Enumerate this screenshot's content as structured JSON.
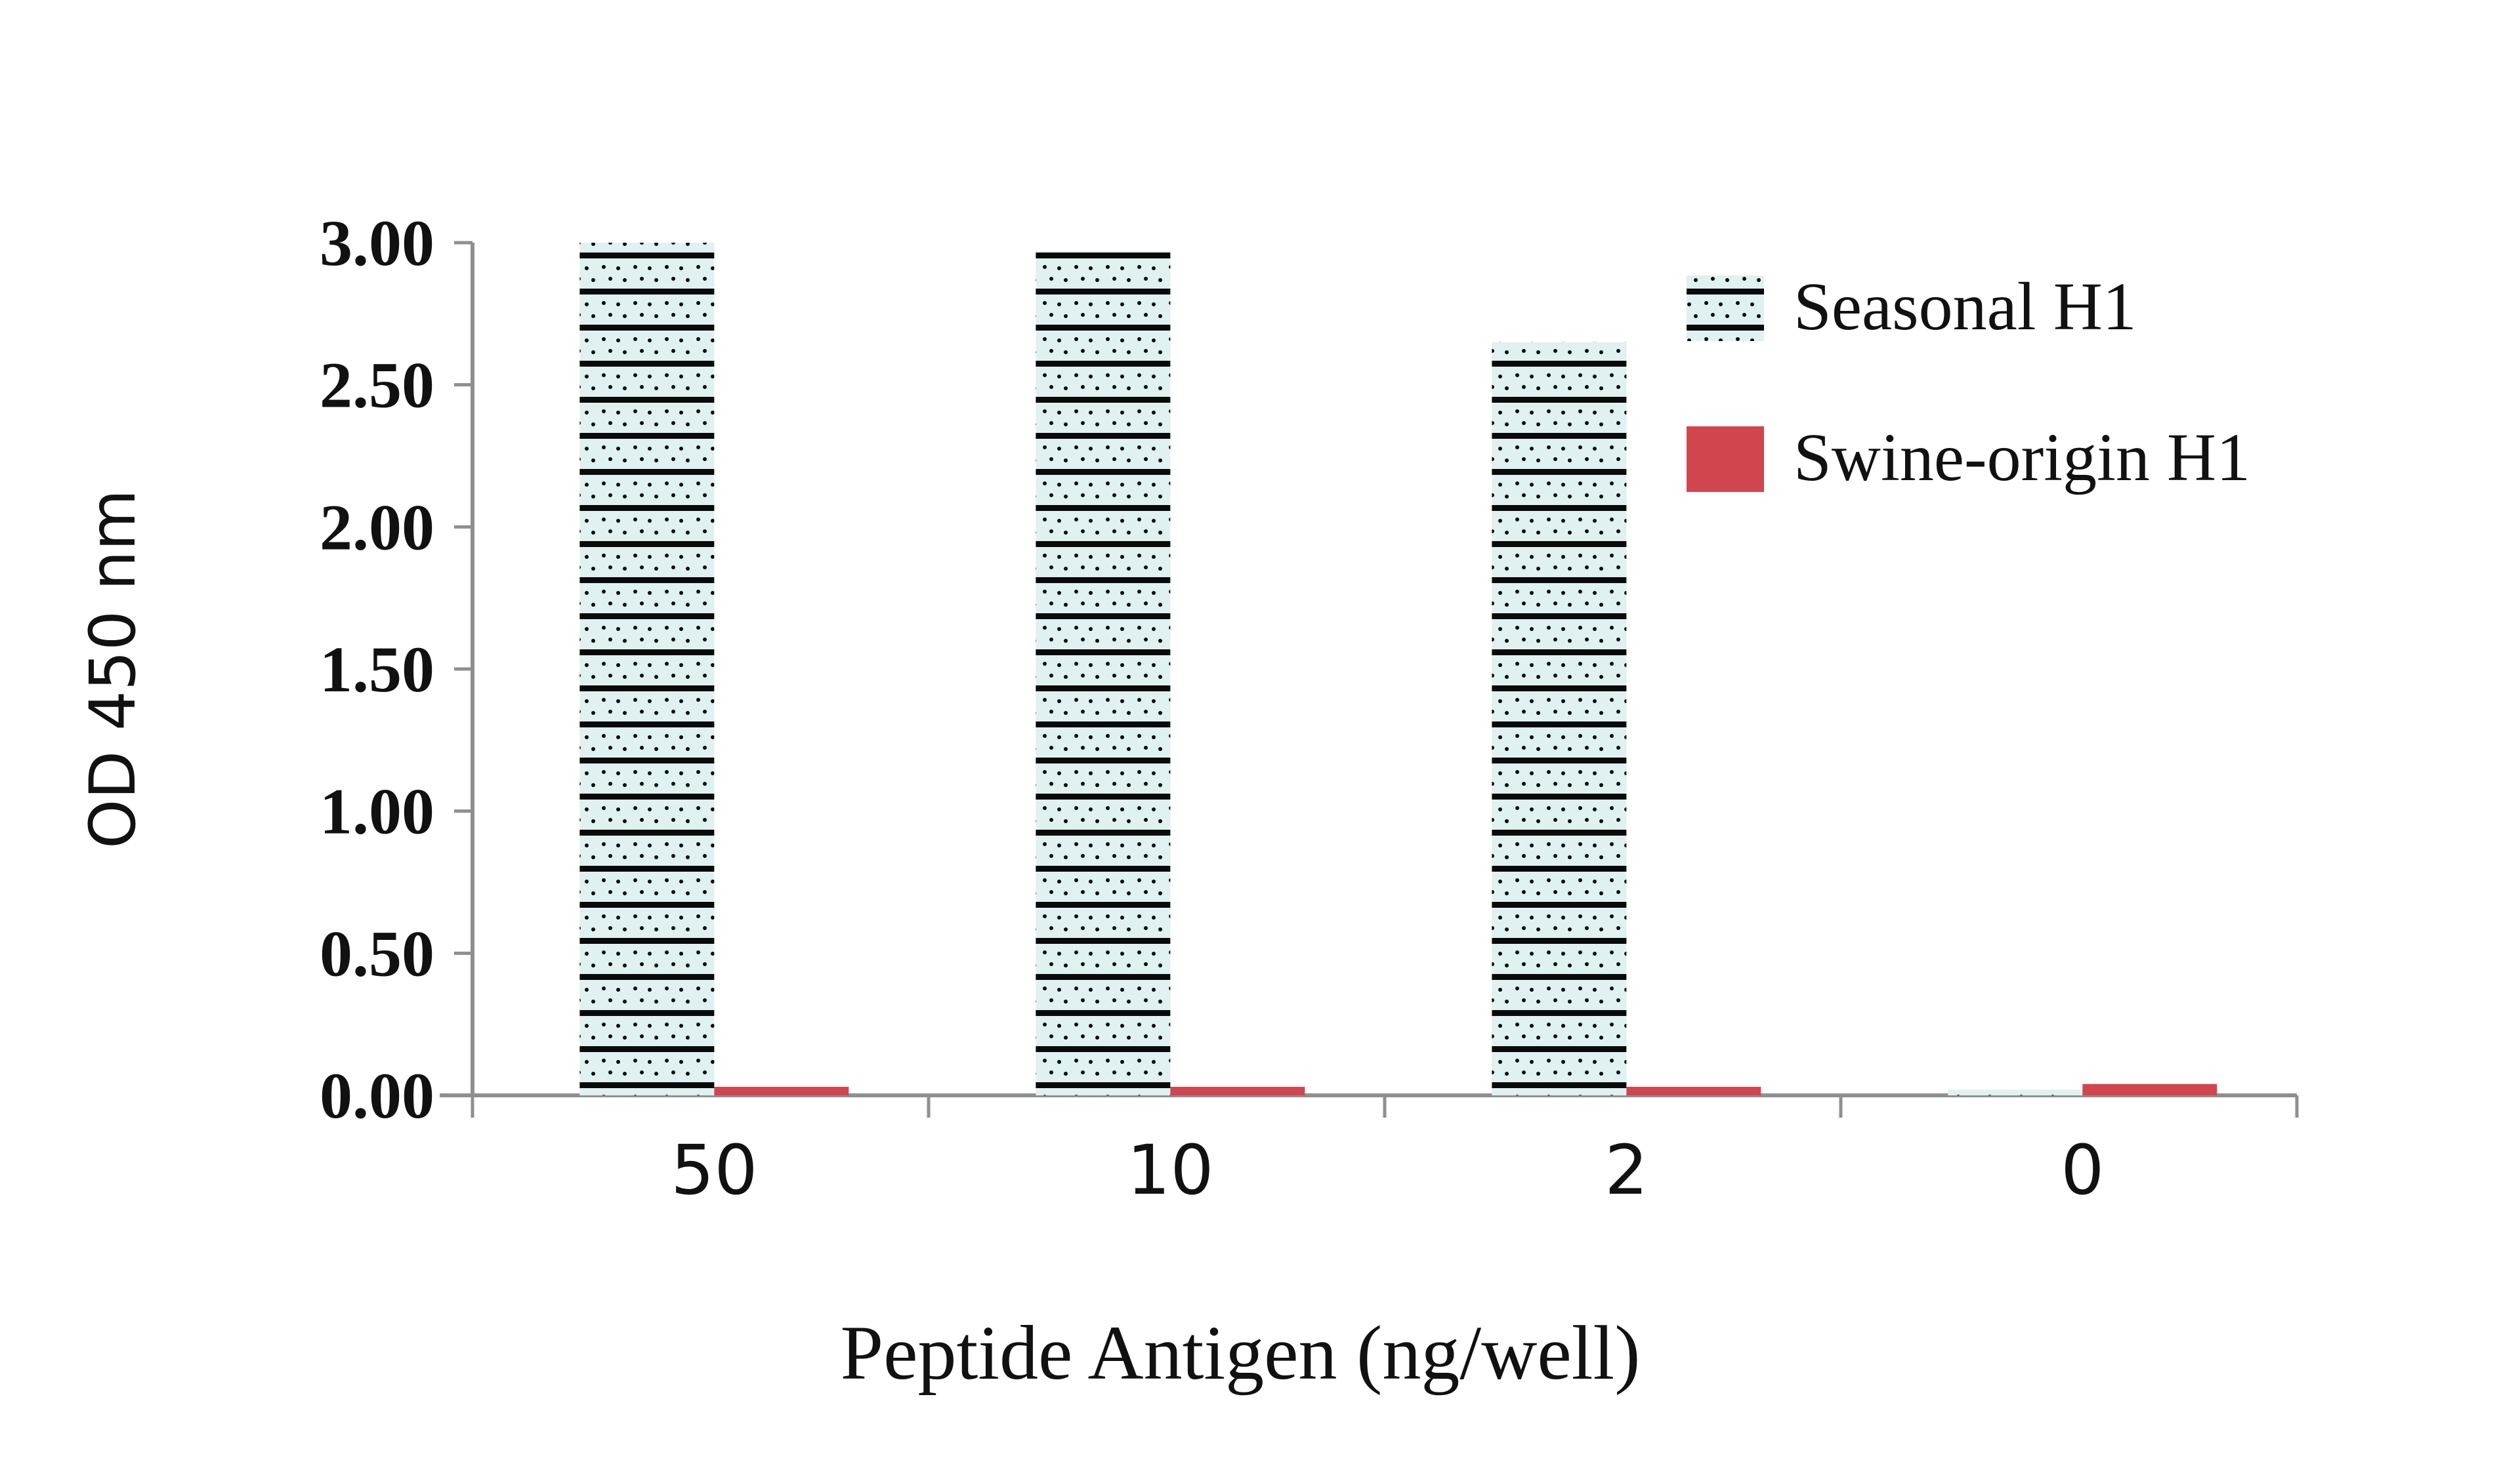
{
  "chart_data": {
    "type": "bar",
    "xlabel": "Peptide Antigen (ng/well)",
    "ylabel": "OD 450 nm",
    "categories": [
      "50",
      "10",
      "2",
      "0"
    ],
    "ylim": [
      0,
      3.0
    ],
    "yticks": [
      "0.00",
      "0.50",
      "1.00",
      "1.50",
      "2.00",
      "2.50",
      "3.00"
    ],
    "legend_position": "top-right",
    "grid": false,
    "series": [
      {
        "name": "Seasonal H1",
        "values": [
          3.0,
          2.97,
          2.65,
          0.02
        ],
        "color": "#0a0a0a",
        "pattern_bg": "#dff1f1"
      },
      {
        "name": "Swine-origin H1",
        "values": [
          0.03,
          0.03,
          0.03,
          0.04
        ],
        "color": "#d1454e"
      }
    ]
  }
}
